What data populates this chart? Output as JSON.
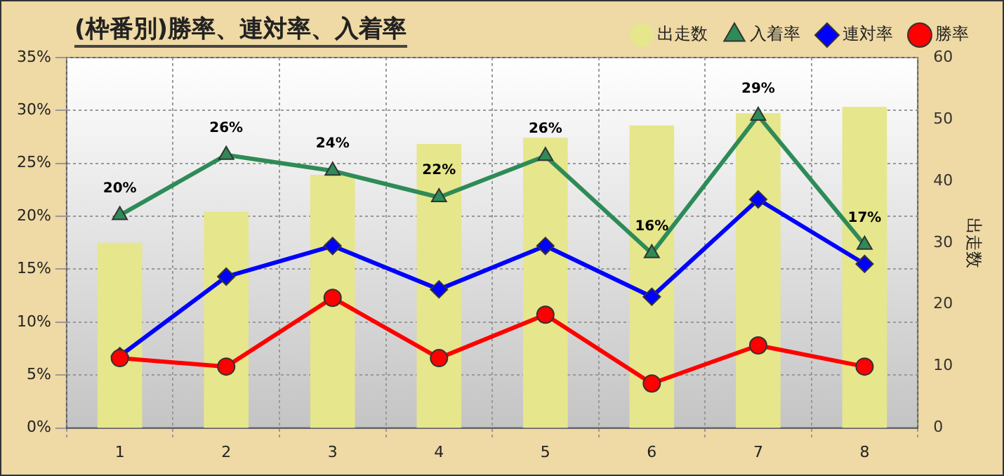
{
  "chart_data": {
    "type": "line",
    "title": "(枠番別)勝率、連対率、入着率",
    "y2label": "出走数",
    "categories": [
      "1",
      "2",
      "3",
      "4",
      "5",
      "6",
      "7",
      "8"
    ],
    "series": [
      {
        "name": "出走数",
        "type": "bar",
        "axis": "y2",
        "color": "#e6e68c",
        "values": [
          30,
          35,
          41,
          46,
          47,
          49,
          51,
          52
        ]
      },
      {
        "name": "入着率",
        "color": "#2e8b57",
        "marker": "triangle",
        "values": [
          20.1,
          25.8,
          24.3,
          21.8,
          25.7,
          16.5,
          29.5,
          17.3
        ],
        "value_labels": [
          "20%",
          "26%",
          "24%",
          "22%",
          "26%",
          "16%",
          "29%",
          "17%"
        ]
      },
      {
        "name": "連対率",
        "color": "#0000ff",
        "marker": "diamond",
        "values": [
          6.8,
          14.3,
          17.2,
          13.1,
          17.2,
          12.4,
          21.6,
          15.5
        ]
      },
      {
        "name": "勝率",
        "color": "#ff0000",
        "marker": "circle",
        "values": [
          6.6,
          5.8,
          12.3,
          6.6,
          10.7,
          4.2,
          7.8,
          5.8
        ]
      }
    ],
    "ylim": [
      0,
      35
    ],
    "yticks": [
      {
        "value": 0,
        "label": "0%"
      },
      {
        "value": 5,
        "label": "5%"
      },
      {
        "value": 10,
        "label": "10%"
      },
      {
        "value": 15,
        "label": "15%"
      },
      {
        "value": 20,
        "label": "20%"
      },
      {
        "value": 25,
        "label": "25%"
      },
      {
        "value": 30,
        "label": "30%"
      },
      {
        "value": 35,
        "label": "35%"
      }
    ],
    "y2lim": [
      0,
      60
    ],
    "y2ticks": [
      0,
      10,
      20,
      30,
      40,
      50,
      60
    ],
    "grid": true,
    "legend": "top right"
  }
}
